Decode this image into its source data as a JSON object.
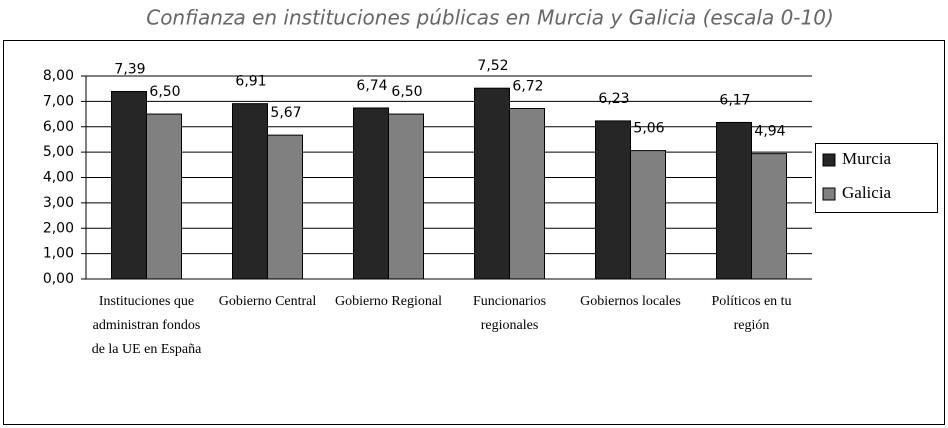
{
  "chart_data": {
    "type": "bar",
    "title": "Confianza en instituciones públicas en Murcia y Galicia (escala 0-10)",
    "categories": [
      "Instituciones que administran fondos de la UE en España",
      "Gobierno Central",
      "Gobierno Regional",
      "Funcionarios regionales",
      "Gobiernos locales",
      "Políticos en tu región"
    ],
    "series": [
      {
        "name": "Murcia",
        "color": "#262626",
        "values": [
          7.39,
          6.91,
          6.74,
          7.52,
          6.23,
          6.17
        ],
        "value_labels": [
          "7,39",
          "6,91",
          "6,74",
          "7,52",
          "6,23",
          "6,17"
        ]
      },
      {
        "name": "Galicia",
        "color": "#808080",
        "values": [
          6.5,
          5.67,
          6.5,
          6.72,
          5.06,
          4.94
        ],
        "value_labels": [
          "6,50",
          "5,67",
          "6,50",
          "6,72",
          "5,06",
          "4,94"
        ]
      }
    ],
    "ylim": [
      0,
      8
    ],
    "yticks": [
      {
        "value": 0,
        "label": "0,00"
      },
      {
        "value": 1,
        "label": "1,00"
      },
      {
        "value": 2,
        "label": "2,00"
      },
      {
        "value": 3,
        "label": "3,00"
      },
      {
        "value": 4,
        "label": "4,00"
      },
      {
        "value": 5,
        "label": "5,00"
      },
      {
        "value": 6,
        "label": "6,00"
      },
      {
        "value": 7,
        "label": "7,00"
      },
      {
        "value": 8,
        "label": "8,00"
      }
    ],
    "grid": true,
    "legend": "right"
  }
}
